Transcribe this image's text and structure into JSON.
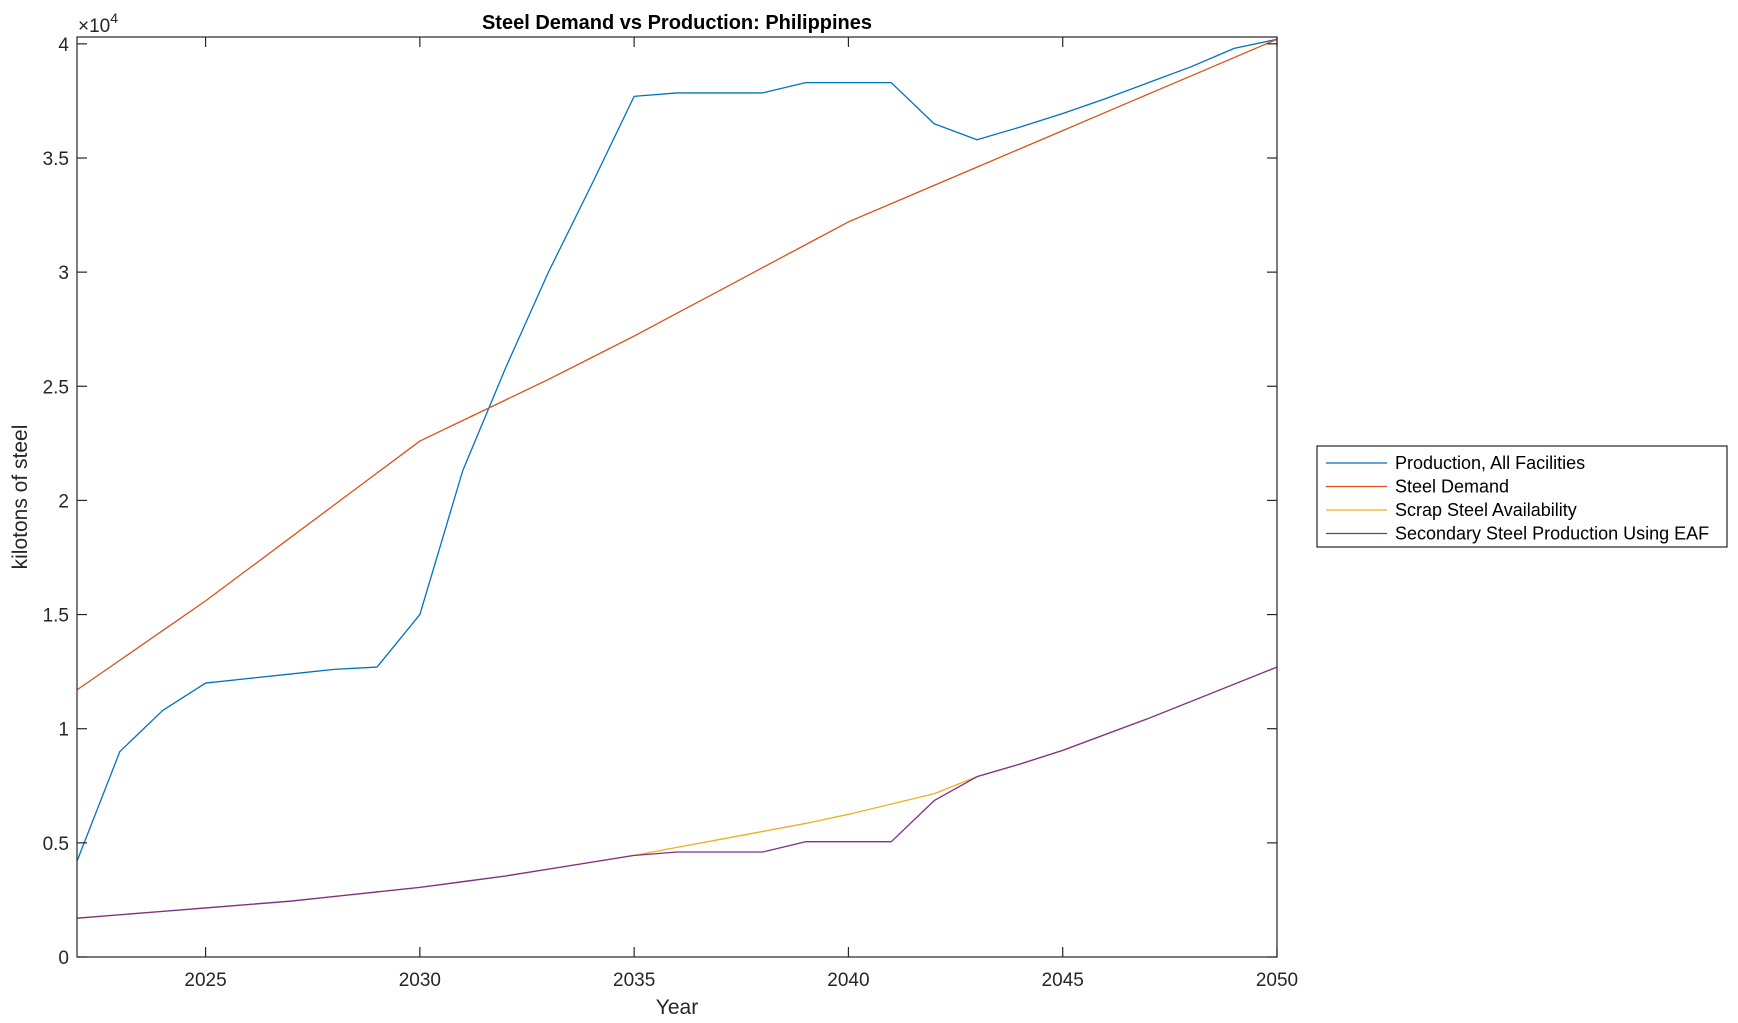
{
  "chart_data": {
    "type": "line",
    "title": "Steel Demand vs Production: Philippines",
    "xlabel": "Year",
    "ylabel": "kilotons of steel",
    "y_exponent_label_base": "×10",
    "y_exponent_label_power": "4",
    "xlim": [
      2022,
      2050
    ],
    "ylim": [
      0,
      40300
    ],
    "xticks": [
      2025,
      2030,
      2035,
      2040,
      2045,
      2050
    ],
    "xtick_labels": [
      "2025",
      "2030",
      "2035",
      "2040",
      "2045",
      "2050"
    ],
    "yticks": [
      0,
      5000,
      10000,
      15000,
      20000,
      25000,
      30000,
      35000,
      40000
    ],
    "ytick_labels": [
      "0",
      "0.5",
      "1",
      "1.5",
      "2",
      "2.5",
      "3",
      "3.5",
      "4"
    ],
    "legend_position": "outside-right",
    "grid": false,
    "x": [
      2022,
      2023,
      2024,
      2025,
      2026,
      2027,
      2028,
      2029,
      2030,
      2031,
      2032,
      2033,
      2034,
      2035,
      2036,
      2037,
      2038,
      2039,
      2040,
      2041,
      2042,
      2043,
      2044,
      2045,
      2046,
      2047,
      2048,
      2049,
      2050
    ],
    "series": [
      {
        "name": "Production, All Facilities",
        "color": "#0072BD",
        "values": [
          4200,
          9000,
          10800,
          12000,
          12200,
          12400,
          12600,
          12700,
          15000,
          21300,
          25800,
          30000,
          33800,
          37700,
          37850,
          37850,
          37850,
          38300,
          38300,
          38300,
          36500,
          35800,
          36350,
          36950,
          37600,
          38300,
          39000,
          39800,
          40200
        ]
      },
      {
        "name": "Steel Demand",
        "color": "#D95319",
        "values": [
          11700,
          13000,
          14300,
          15600,
          17000,
          18400,
          19800,
          21200,
          22600,
          23500,
          24400,
          25300,
          26250,
          27200,
          28200,
          29200,
          30200,
          31200,
          32200,
          33000,
          33800,
          34600,
          35400,
          36200,
          37000,
          37800,
          38600,
          39400,
          40200
        ]
      },
      {
        "name": "Scrap Steel Availability",
        "color": "#EDB120",
        "values": [
          1700,
          1850,
          2000,
          2150,
          2300,
          2450,
          2650,
          2850,
          3050,
          3300,
          3550,
          3850,
          4150,
          4450,
          4800,
          5150,
          5500,
          5850,
          6250,
          6700,
          7150,
          7900,
          8450,
          9050,
          9750,
          10450,
          11200,
          11950,
          12700
        ]
      },
      {
        "name": "Secondary Steel Production Using EAF",
        "color": "#7E2F8E",
        "values": [
          1700,
          1850,
          2000,
          2150,
          2300,
          2450,
          2650,
          2850,
          3050,
          3300,
          3550,
          3850,
          4150,
          4450,
          4600,
          4600,
          4600,
          5050,
          5050,
          5050,
          6850,
          7900,
          8450,
          9050,
          9750,
          10450,
          11200,
          11950,
          12700
        ]
      }
    ]
  }
}
